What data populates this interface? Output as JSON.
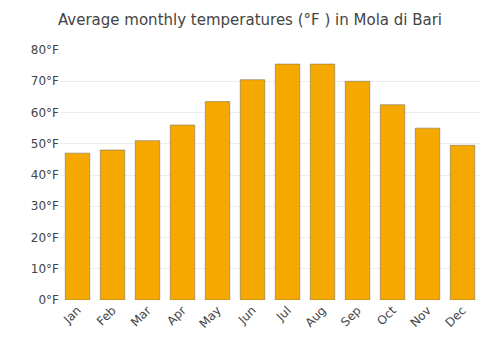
{
  "chart_data": {
    "type": "bar",
    "title": "Average monthly temperatures (°F ) in Mola di Bari",
    "categories": [
      "Jan",
      "Feb",
      "Mar",
      "Apr",
      "May",
      "Jun",
      "Jul",
      "Aug",
      "Sep",
      "Oct",
      "Nov",
      "Dec"
    ],
    "values": [
      47,
      48,
      51,
      56,
      63.5,
      70.5,
      75.5,
      75.5,
      70,
      62.5,
      55,
      49.5
    ],
    "color": "#F5A800",
    "ylim": [
      0,
      80
    ],
    "yticks": [
      {
        "value": 0,
        "label": "0°F"
      },
      {
        "value": 10,
        "label": "10°F"
      },
      {
        "value": 20,
        "label": "20°F"
      },
      {
        "value": 30,
        "label": "30°F"
      },
      {
        "value": 40,
        "label": "40°F"
      },
      {
        "value": 50,
        "label": "50°F"
      },
      {
        "value": 60,
        "label": "60°F"
      },
      {
        "value": 70,
        "label": "70°F"
      },
      {
        "value": 80,
        "label": "80°F"
      }
    ],
    "grid": true
  }
}
